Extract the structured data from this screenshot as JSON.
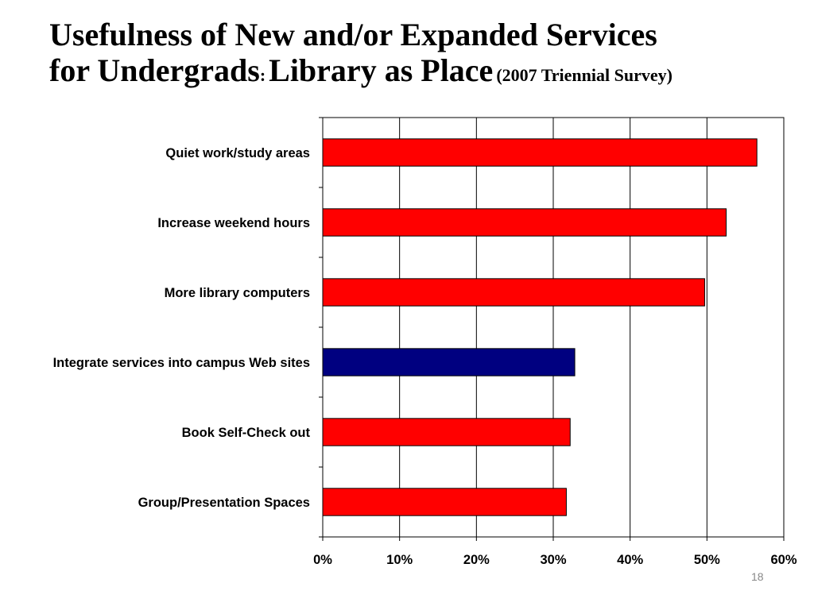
{
  "title": {
    "line1": "Usefulness of New and/or Expanded Services",
    "line2_main": "for Undergrads",
    "line2_colon": ":",
    "line2_part2": "Library as Place",
    "line2_sub": "(2007 Triennial Survey)"
  },
  "slide_number": "18",
  "colors": {
    "red": "#ff0000",
    "blue": "#000080"
  },
  "chart_data": {
    "type": "bar",
    "orientation": "horizontal",
    "categories": [
      "Quiet work/study areas",
      "Increase weekend hours",
      "More library computers",
      "Integrate services into campus Web sites",
      "Book Self-Check out",
      "Group/Presentation Spaces"
    ],
    "values": [
      0.565,
      0.525,
      0.497,
      0.328,
      0.322,
      0.317
    ],
    "bar_colors": [
      "#ff0000",
      "#ff0000",
      "#ff0000",
      "#000080",
      "#ff0000",
      "#ff0000"
    ],
    "xlim": [
      0,
      0.6
    ],
    "xticks": [
      0,
      0.1,
      0.2,
      0.3,
      0.4,
      0.5,
      0.6
    ],
    "xtick_labels": [
      "0%",
      "10%",
      "20%",
      "30%",
      "40%",
      "50%",
      "60%"
    ],
    "grid": "vertical",
    "legend": "none"
  }
}
